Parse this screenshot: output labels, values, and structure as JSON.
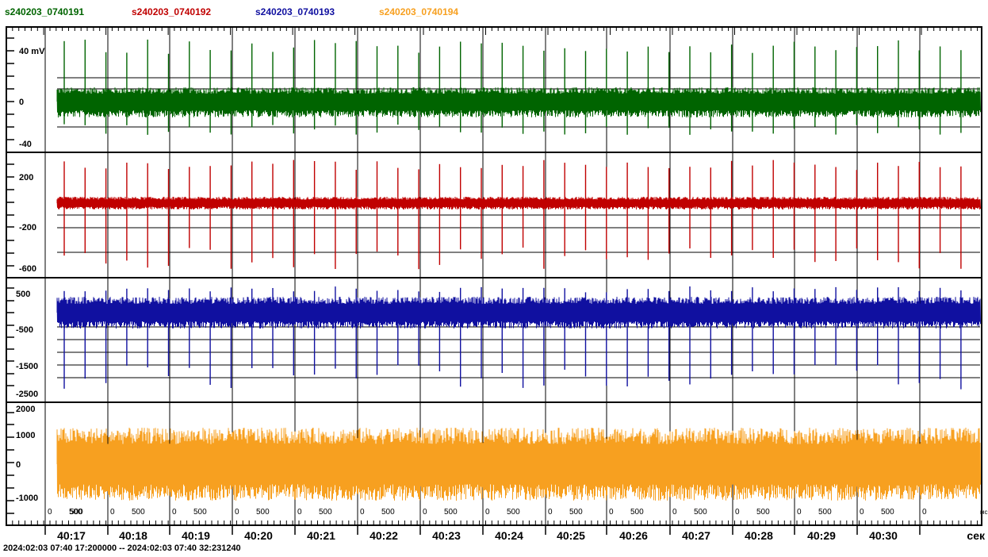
{
  "legend": [
    {
      "label": "s240203_0740191",
      "color": "#006400"
    },
    {
      "label": "s240203_0740192",
      "color": "#c00000"
    },
    {
      "label": "s240203_0740193",
      "color": "#1010a0"
    },
    {
      "label": "s240203_0740194",
      "color": "#f7a020"
    }
  ],
  "time_range": "2024:02:03 07:40 17:200000 -- 2024:02:03 07:40 32:231240",
  "x_unit": "сек",
  "ms_unit": "мс",
  "chart_data": {
    "type": "line",
    "x_axis": {
      "major_ticks": [
        "40:17",
        "40:18",
        "40:19",
        "40:20",
        "40:21",
        "40:22",
        "40:23",
        "40:24",
        "40:25",
        "40:26",
        "40:27",
        "40:28",
        "40:29",
        "40:30"
      ],
      "minor_labels": [
        "500",
        "0"
      ],
      "unit": "сек",
      "minor_unit": "мс",
      "range_seconds": [
        16.75,
        32.23
      ]
    },
    "panels": [
      {
        "series": "s240203_0740191",
        "color": "#006400",
        "unit": "mV",
        "tick_labels": [
          "40 mV",
          "0",
          "-40"
        ],
        "ylim": [
          -40,
          40
        ],
        "noise_band": [
          -13,
          13
        ],
        "spikes": {
          "up_peak": 47,
          "down_peak": -30,
          "count_per_second": 3
        }
      },
      {
        "series": "s240203_0740192",
        "color": "#c00000",
        "tick_labels": [
          "200",
          "-200",
          "-600"
        ],
        "ylim": [
          -640,
          320
        ],
        "noise_band": [
          -10,
          20
        ],
        "spikes": {
          "up_peak": 190,
          "down_peak": -500,
          "count_per_second": 3
        }
      },
      {
        "series": "s240203_0740193",
        "color": "#1010a0",
        "tick_labels": [
          "500",
          "-500",
          "-1500",
          "-2500"
        ],
        "ylim": [
          -2500,
          800
        ],
        "noise_band": [
          -500,
          500
        ],
        "spikes": {
          "up_peak": 650,
          "down_peak": -1800,
          "count_per_second": 3
        }
      },
      {
        "series": "s240203_0740194",
        "color": "#f7a020",
        "tick_labels": [
          "2000",
          "1000",
          "0",
          "-1000"
        ],
        "ylim": [
          -1200,
          2000
        ],
        "noise_band": [
          -1000,
          1000
        ],
        "spikes": null
      }
    ]
  }
}
